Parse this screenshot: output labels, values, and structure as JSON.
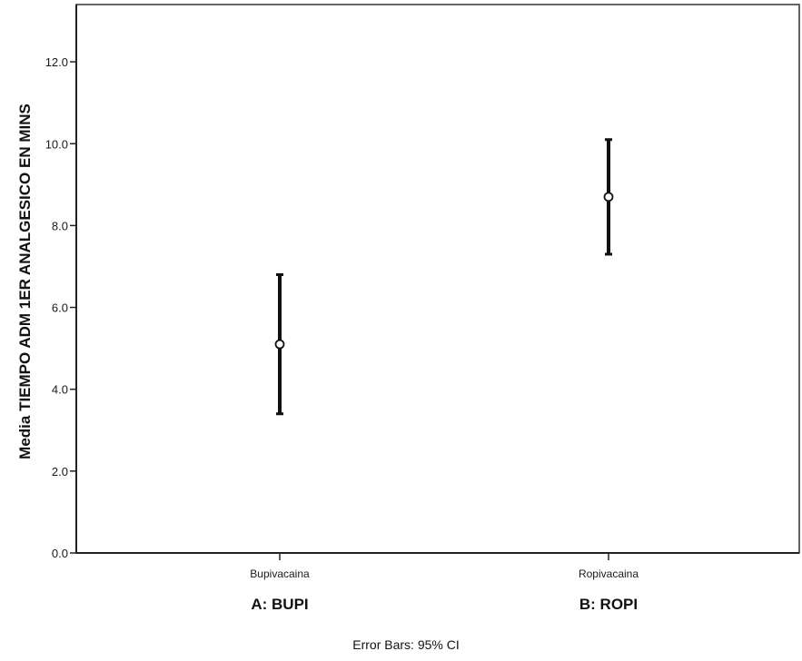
{
  "chart_data": {
    "type": "errorbar",
    "ylabel": "Media TIEMPO ADM 1ER ANALGESICO EN MINS",
    "yticks": [
      "0.0",
      "2.0",
      "4.0",
      "6.0",
      "8.0",
      "10.0",
      "12.0"
    ],
    "ylim": [
      0,
      13.4
    ],
    "categories": [
      "Bupivacaina",
      "Ropivacaina"
    ],
    "group_labels": [
      "A: BUPI",
      "B: ROPI"
    ],
    "points": [
      {
        "category": "Bupivacaina",
        "mean": 5.1,
        "lower": 3.4,
        "upper": 6.8
      },
      {
        "category": "Ropivacaina",
        "mean": 8.7,
        "lower": 7.3,
        "upper": 10.1
      }
    ],
    "footnote": "Error Bars: 95% CI",
    "grid": false,
    "colors": {
      "marks": "#111111",
      "axis": "#222222"
    }
  }
}
